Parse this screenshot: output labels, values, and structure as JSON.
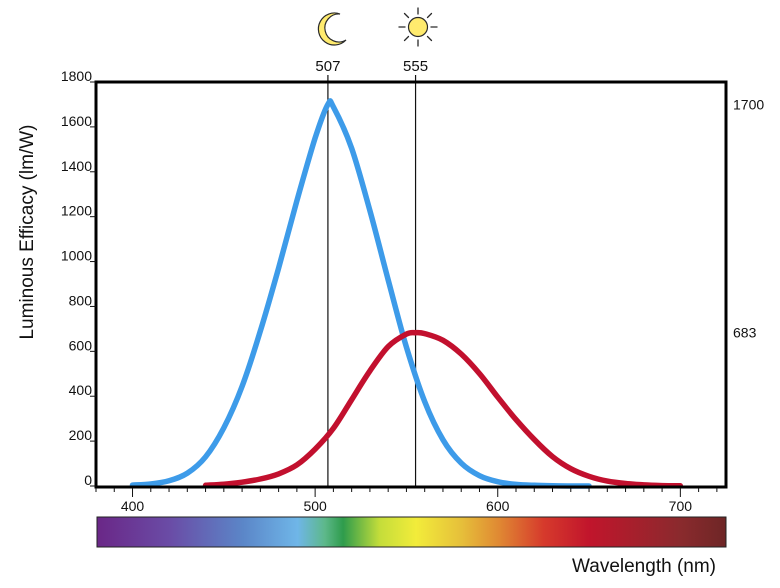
{
  "chart_data": {
    "type": "line",
    "ylabel": "Luminous Efficacy (lm/W)",
    "xlabel": "Wavelength (nm)",
    "xlim": [
      380,
      725
    ],
    "ylim": [
      0,
      1800
    ],
    "x_ticks": [
      400,
      500,
      600,
      700
    ],
    "x_tick_labels": [
      "400",
      "500",
      "600",
      "700"
    ],
    "y_ticks": [
      0,
      200,
      400,
      600,
      800,
      1000,
      1200,
      1400,
      1600,
      1800
    ],
    "y_tick_labels": [
      "0",
      "200",
      "400",
      "600",
      "800",
      "1000",
      "1200",
      "1400",
      "1600",
      "1800"
    ],
    "right_labels": [
      {
        "value": 1700,
        "text": "1700"
      },
      {
        "value": 683,
        "text": "683"
      }
    ],
    "markers": [
      {
        "x": 507,
        "text": "507",
        "icon": "moon-icon"
      },
      {
        "x": 555,
        "text": "555",
        "icon": "sun-icon"
      }
    ],
    "series": [
      {
        "color": "#3d9be9",
        "x": [
          400,
          410,
          420,
          430,
          440,
          450,
          460,
          470,
          480,
          490,
          500,
          507,
          510,
          520,
          530,
          540,
          550,
          560,
          570,
          580,
          590,
          600,
          610,
          620,
          630,
          640,
          650
        ],
        "values": [
          4,
          9,
          23,
          57,
          130,
          259,
          444,
          690,
          971,
          1271,
          1550,
          1700,
          1689,
          1504,
          1227,
          918,
          619,
          376,
          206,
          102,
          46,
          19,
          7,
          3,
          1,
          0,
          0
        ]
      },
      {
        "color": "#c2102e",
        "x": [
          440,
          450,
          460,
          470,
          480,
          490,
          500,
          510,
          520,
          530,
          540,
          550,
          555,
          560,
          570,
          580,
          590,
          600,
          610,
          620,
          630,
          640,
          650,
          660,
          670,
          680,
          690,
          700
        ],
        "values": [
          3,
          8,
          17,
          31,
          54,
          94,
          164,
          257,
          385,
          513,
          621,
          677,
          683,
          679,
          649,
          588,
          501,
          396,
          296,
          207,
          131,
          77,
          43,
          22,
          11,
          5,
          2,
          1
        ]
      }
    ],
    "colorbar": {
      "stops": [
        {
          "nm": 380,
          "color": "#6a2787"
        },
        {
          "nm": 420,
          "color": "#6a4ca6"
        },
        {
          "nm": 460,
          "color": "#5b86c8"
        },
        {
          "nm": 490,
          "color": "#6fb6e8"
        },
        {
          "nm": 505,
          "color": "#5db88a"
        },
        {
          "nm": 515,
          "color": "#2e9c4c"
        },
        {
          "nm": 535,
          "color": "#c4dd3a"
        },
        {
          "nm": 555,
          "color": "#f2ec3a"
        },
        {
          "nm": 580,
          "color": "#e6bf3a"
        },
        {
          "nm": 600,
          "color": "#e08a33"
        },
        {
          "nm": 625,
          "color": "#d63a2c"
        },
        {
          "nm": 650,
          "color": "#c1152c"
        },
        {
          "nm": 700,
          "color": "#8a2a2d"
        },
        {
          "nm": 725,
          "color": "#6e2626"
        }
      ]
    },
    "grid": false,
    "legend": "none"
  }
}
